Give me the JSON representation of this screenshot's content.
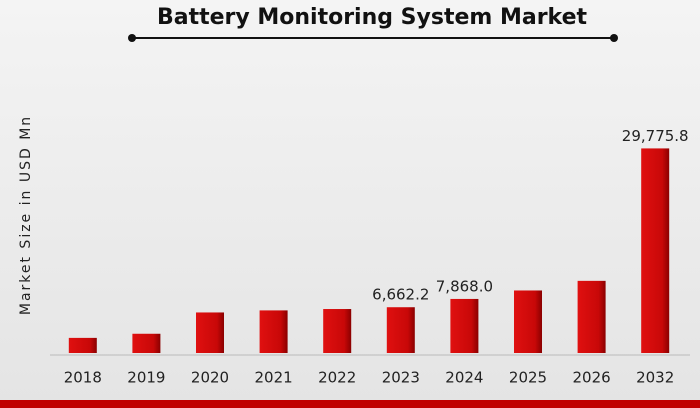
{
  "chart_data": {
    "type": "bar",
    "title": "Battery Monitoring System  Market",
    "y_label": "Market Size in USD Mn",
    "categories": [
      "2018",
      "2019",
      "2020",
      "2021",
      "2022",
      "2023",
      "2024",
      "2025",
      "2026",
      "2032"
    ],
    "values": [
      2200,
      2800,
      5900,
      6200,
      6400,
      6662.2,
      7868.0,
      9100,
      10500,
      29775.8
    ],
    "value_labels": [
      null,
      null,
      null,
      null,
      null,
      "6,662.2",
      "7,868.0",
      null,
      null,
      "29,775.8"
    ],
    "color": "#d10a0a",
    "ylim": [
      0,
      31000
    ]
  }
}
